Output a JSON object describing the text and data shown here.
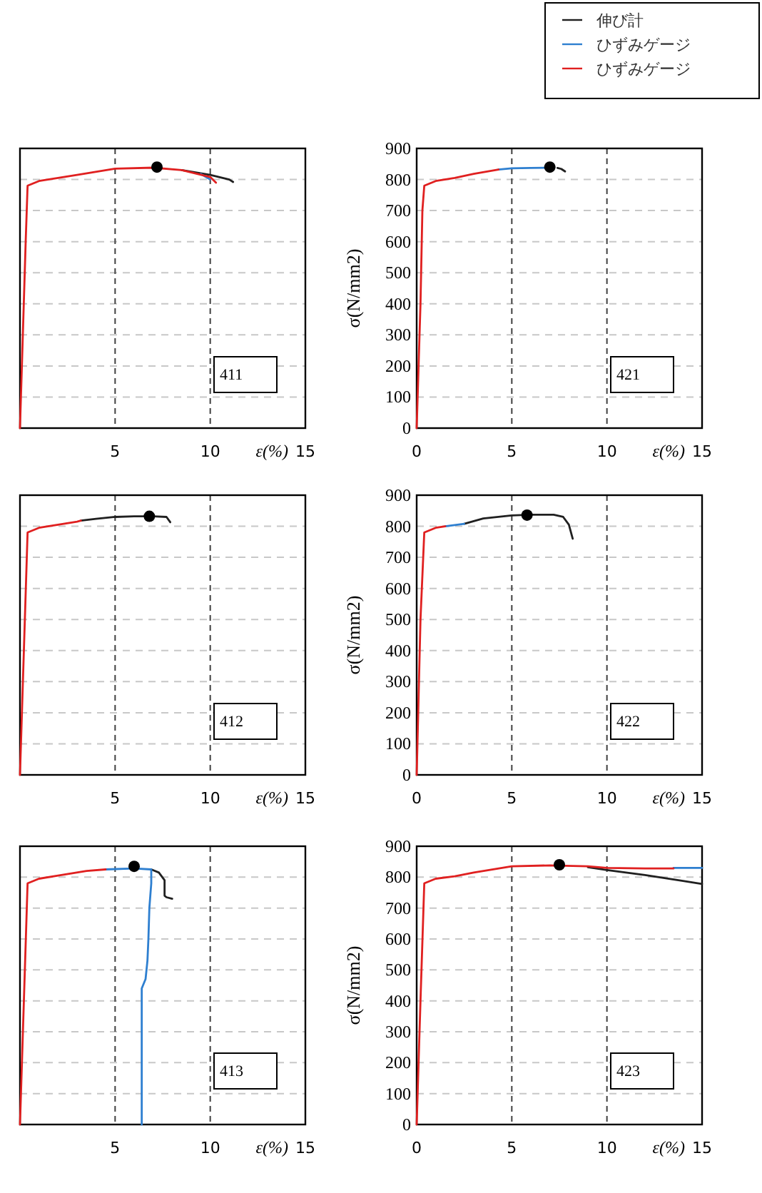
{
  "chart_data": [
    {
      "type": "line",
      "xlabel": "ε(%)",
      "xlim": [
        0,
        15
      ],
      "ylim": [
        0,
        900
      ],
      "xticks": [
        5,
        10,
        15
      ],
      "yticks": [
        0,
        100,
        200,
        300,
        400,
        500,
        600,
        700,
        800,
        900
      ],
      "tick_labels": "x",
      "grid": true,
      "annotations": [
        "411"
      ],
      "series": [
        {
          "color": "#202020",
          "x": [
            8.5,
            10,
            11,
            11.2
          ],
          "values": [
            830,
            815,
            800,
            792
          ]
        },
        {
          "color": "#2e7fd0",
          "x": [
            9.5,
            10
          ],
          "values": [
            818,
            800
          ]
        },
        {
          "color": "#e02020",
          "x": [
            0,
            0.3,
            0.4,
            1,
            3,
            5,
            7,
            8.5,
            10,
            10.3
          ],
          "values": [
            0,
            600,
            780,
            795,
            815,
            835,
            838,
            830,
            808,
            790
          ]
        },
        {
          "type": "scatter",
          "marker": "circle",
          "color": "#000000",
          "x": [
            7.2
          ],
          "values": [
            840
          ]
        }
      ]
    },
    {
      "type": "line",
      "xlabel": "ε(%)",
      "ylabel": "σ(N/mm2)",
      "xlim": [
        0,
        15
      ],
      "ylim": [
        0,
        900
      ],
      "xticks": [
        0,
        5,
        10,
        15
      ],
      "yticks": [
        0,
        100,
        200,
        300,
        400,
        500,
        600,
        700,
        800,
        900
      ],
      "grid": true,
      "legend": "top right",
      "annotations": [
        "421"
      ],
      "series": [
        {
          "name": "伸び計",
          "color": "#202020",
          "x": [
            7.4,
            7.6,
            7.8
          ],
          "values": [
            837,
            834,
            826
          ]
        },
        {
          "name": "ひずみゲージ",
          "color": "#2e7fd0",
          "x": [
            4.3,
            5,
            6,
            7
          ],
          "values": [
            832,
            836,
            837,
            838
          ]
        },
        {
          "name": "ひずみゲージ",
          "color": "#e02020",
          "x": [
            0,
            0.2,
            0.3,
            0.4,
            1,
            2,
            3,
            4.3
          ],
          "values": [
            0,
            400,
            700,
            780,
            795,
            805,
            818,
            832
          ]
        },
        {
          "type": "scatter",
          "marker": "circle",
          "color": "#000000",
          "x": [
            7.0
          ],
          "values": [
            840
          ]
        }
      ]
    },
    {
      "type": "line",
      "xlabel": "ε(%)",
      "xlim": [
        0,
        15
      ],
      "ylim": [
        0,
        900
      ],
      "xticks": [
        5,
        10,
        15
      ],
      "yticks": [
        0,
        100,
        200,
        300,
        400,
        500,
        600,
        700,
        800,
        900
      ],
      "tick_labels": "x",
      "grid": true,
      "annotations": [
        "412"
      ],
      "series": [
        {
          "color": "#202020",
          "x": [
            3.2,
            4,
            5,
            6,
            7,
            7.7,
            7.9
          ],
          "values": [
            818,
            824,
            830,
            832,
            832,
            830,
            813
          ]
        },
        {
          "color": "#e02020",
          "x": [
            0,
            0.4,
            1,
            2,
            3,
            3.2
          ],
          "values": [
            0,
            780,
            795,
            805,
            815,
            818
          ]
        },
        {
          "type": "scatter",
          "marker": "circle",
          "color": "#000000",
          "x": [
            6.8
          ],
          "values": [
            832
          ]
        }
      ]
    },
    {
      "type": "line",
      "xlabel": "ε(%)",
      "ylabel": "σ(N/mm2)",
      "xlim": [
        0,
        15
      ],
      "ylim": [
        0,
        900
      ],
      "xticks": [
        0,
        5,
        10,
        15
      ],
      "yticks": [
        0,
        100,
        200,
        300,
        400,
        500,
        600,
        700,
        800,
        900
      ],
      "grid": true,
      "annotations": [
        "422"
      ],
      "series": [
        {
          "color": "#202020",
          "x": [
            2.5,
            3.5,
            5,
            6,
            7.2,
            7.7,
            8,
            8.2
          ],
          "values": [
            808,
            825,
            835,
            837,
            837,
            830,
            805,
            760
          ]
        },
        {
          "color": "#2e7fd0",
          "x": [
            1.5,
            2.5
          ],
          "values": [
            800,
            808
          ]
        },
        {
          "color": "#e02020",
          "x": [
            0,
            0.2,
            0.4,
            1,
            1.5
          ],
          "values": [
            0,
            500,
            780,
            795,
            800
          ]
        },
        {
          "type": "scatter",
          "marker": "circle",
          "color": "#000000",
          "x": [
            5.8
          ],
          "values": [
            836
          ]
        }
      ]
    },
    {
      "type": "line",
      "xlabel": "ε(%)",
      "xlim": [
        0,
        15
      ],
      "ylim": [
        0,
        900
      ],
      "xticks": [
        5,
        10,
        15
      ],
      "yticks": [
        0,
        100,
        200,
        300,
        400,
        500,
        600,
        700,
        800,
        900
      ],
      "tick_labels": "x",
      "grid": true,
      "annotations": [
        "413"
      ],
      "series": [
        {
          "color": "#202020",
          "x": [
            6.9,
            7.3,
            7.6,
            7.6,
            7.7,
            8.0
          ],
          "values": [
            825,
            815,
            790,
            740,
            735,
            730
          ]
        },
        {
          "color": "#2e7fd0",
          "x": [
            4.5,
            6,
            6.9,
            6.9,
            6.8,
            6.75,
            6.7,
            6.6,
            6.5,
            6.4,
            6.4
          ],
          "values": [
            825,
            828,
            825,
            780,
            700,
            600,
            530,
            470,
            455,
            440,
            0
          ]
        },
        {
          "color": "#e02020",
          "x": [
            0,
            0.4,
            1,
            2,
            3.5,
            4.5
          ],
          "values": [
            0,
            780,
            795,
            805,
            820,
            825
          ]
        },
        {
          "type": "scatter",
          "marker": "circle",
          "color": "#000000",
          "x": [
            6.0
          ],
          "values": [
            835
          ]
        }
      ]
    },
    {
      "type": "line",
      "xlabel": "ε(%)",
      "ylabel": "σ(N/mm2)",
      "xlim": [
        0,
        15
      ],
      "ylim": [
        0,
        900
      ],
      "xticks": [
        0,
        5,
        10,
        15
      ],
      "yticks": [
        0,
        100,
        200,
        300,
        400,
        500,
        600,
        700,
        800,
        900
      ],
      "grid": true,
      "annotations": [
        "423"
      ],
      "series": [
        {
          "color": "#202020",
          "x": [
            9,
            10,
            12,
            14,
            15
          ],
          "values": [
            832,
            823,
            807,
            788,
            778
          ]
        },
        {
          "color": "#2e7fd0",
          "x": [
            13.5,
            15
          ],
          "values": [
            830,
            830
          ]
        },
        {
          "color": "#e02020",
          "x": [
            0,
            0.2,
            0.4,
            1,
            2,
            3,
            5,
            7,
            9,
            10,
            12,
            13.5
          ],
          "values": [
            0,
            400,
            780,
            795,
            803,
            815,
            835,
            838,
            835,
            830,
            828,
            828
          ]
        },
        {
          "type": "scatter",
          "marker": "circle",
          "color": "#000000",
          "x": [
            7.5
          ],
          "values": [
            840
          ]
        }
      ]
    }
  ]
}
